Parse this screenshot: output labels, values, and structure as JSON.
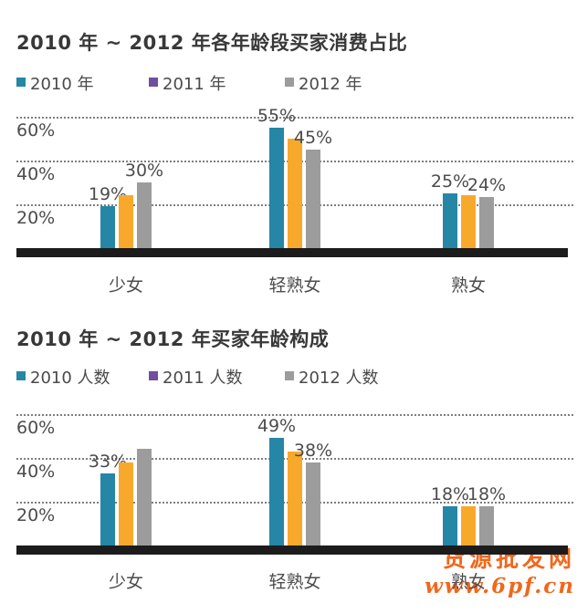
{
  "colors": {
    "teal": "#2586a6",
    "orange": "#f8a92c",
    "gray": "#9c9c9c",
    "purple_legend": "#6f4f9e",
    "axis_black": "#1c1c1c",
    "text_dark": "#383838",
    "text_label": "#4c4c4c",
    "watermark_orange": "#f2671c"
  },
  "watermark": {
    "line1": "货源批发网",
    "line2": "www.6pf.cn",
    "color": "#f2671c"
  },
  "chart_data": [
    {
      "type": "bar",
      "title": "2010 年 ~ 2012 年各年龄段买家消费占比",
      "categories": [
        "少女",
        "轻熟女",
        "熟女"
      ],
      "y_ticks": [
        {
          "label": "60%",
          "pct": 60
        },
        {
          "label": "40%",
          "pct": 40
        },
        {
          "label": "20%",
          "pct": 20
        }
      ],
      "ylim": [
        0,
        66
      ],
      "grid": "dotted-horizontal",
      "legend_position": "top-left-row",
      "series": [
        {
          "name": "2010 年",
          "legend_color": "#2586a6",
          "bar_color": "#2586a6",
          "values": [
            19,
            55,
            25
          ],
          "labels": [
            "19%",
            "55%",
            "25%"
          ]
        },
        {
          "name": "2011 年",
          "legend_color": "#6f4f9e",
          "bar_color": "#f8a92c",
          "values": [
            24,
            50,
            24
          ],
          "labels": [
            null,
            null,
            null
          ]
        },
        {
          "name": "2012 年",
          "legend_color": "#9c9c9c",
          "bar_color": "#9c9c9c",
          "values": [
            30,
            45,
            23.5
          ],
          "labels": [
            "30%",
            "45%",
            "24%"
          ]
        }
      ]
    },
    {
      "type": "bar",
      "title": "2010 年 ~ 2012 年买家年龄构成",
      "categories": [
        "少女",
        "轻熟女",
        "熟女"
      ],
      "y_ticks": [
        {
          "label": "60%",
          "pct": 60
        },
        {
          "label": "40%",
          "pct": 40
        },
        {
          "label": "20%",
          "pct": 20
        }
      ],
      "ylim": [
        0,
        66
      ],
      "grid": "dotted-horizontal",
      "legend_position": "top-left-row",
      "series": [
        {
          "name": "2010 人数",
          "legend_color": "#2586a6",
          "bar_color": "#2586a6",
          "values": [
            33,
            49,
            18
          ],
          "labels": [
            "33%",
            "49%",
            "18%"
          ]
        },
        {
          "name": "2011 人数",
          "legend_color": "#6f4f9e",
          "bar_color": "#f8a92c",
          "values": [
            38,
            43,
            18
          ],
          "labels": [
            null,
            null,
            null
          ]
        },
        {
          "name": "2012 人数",
          "legend_color": "#9c9c9c",
          "bar_color": "#9c9c9c",
          "values": [
            44,
            38,
            18
          ],
          "labels": [
            null,
            "38%",
            "18%"
          ]
        }
      ]
    }
  ]
}
